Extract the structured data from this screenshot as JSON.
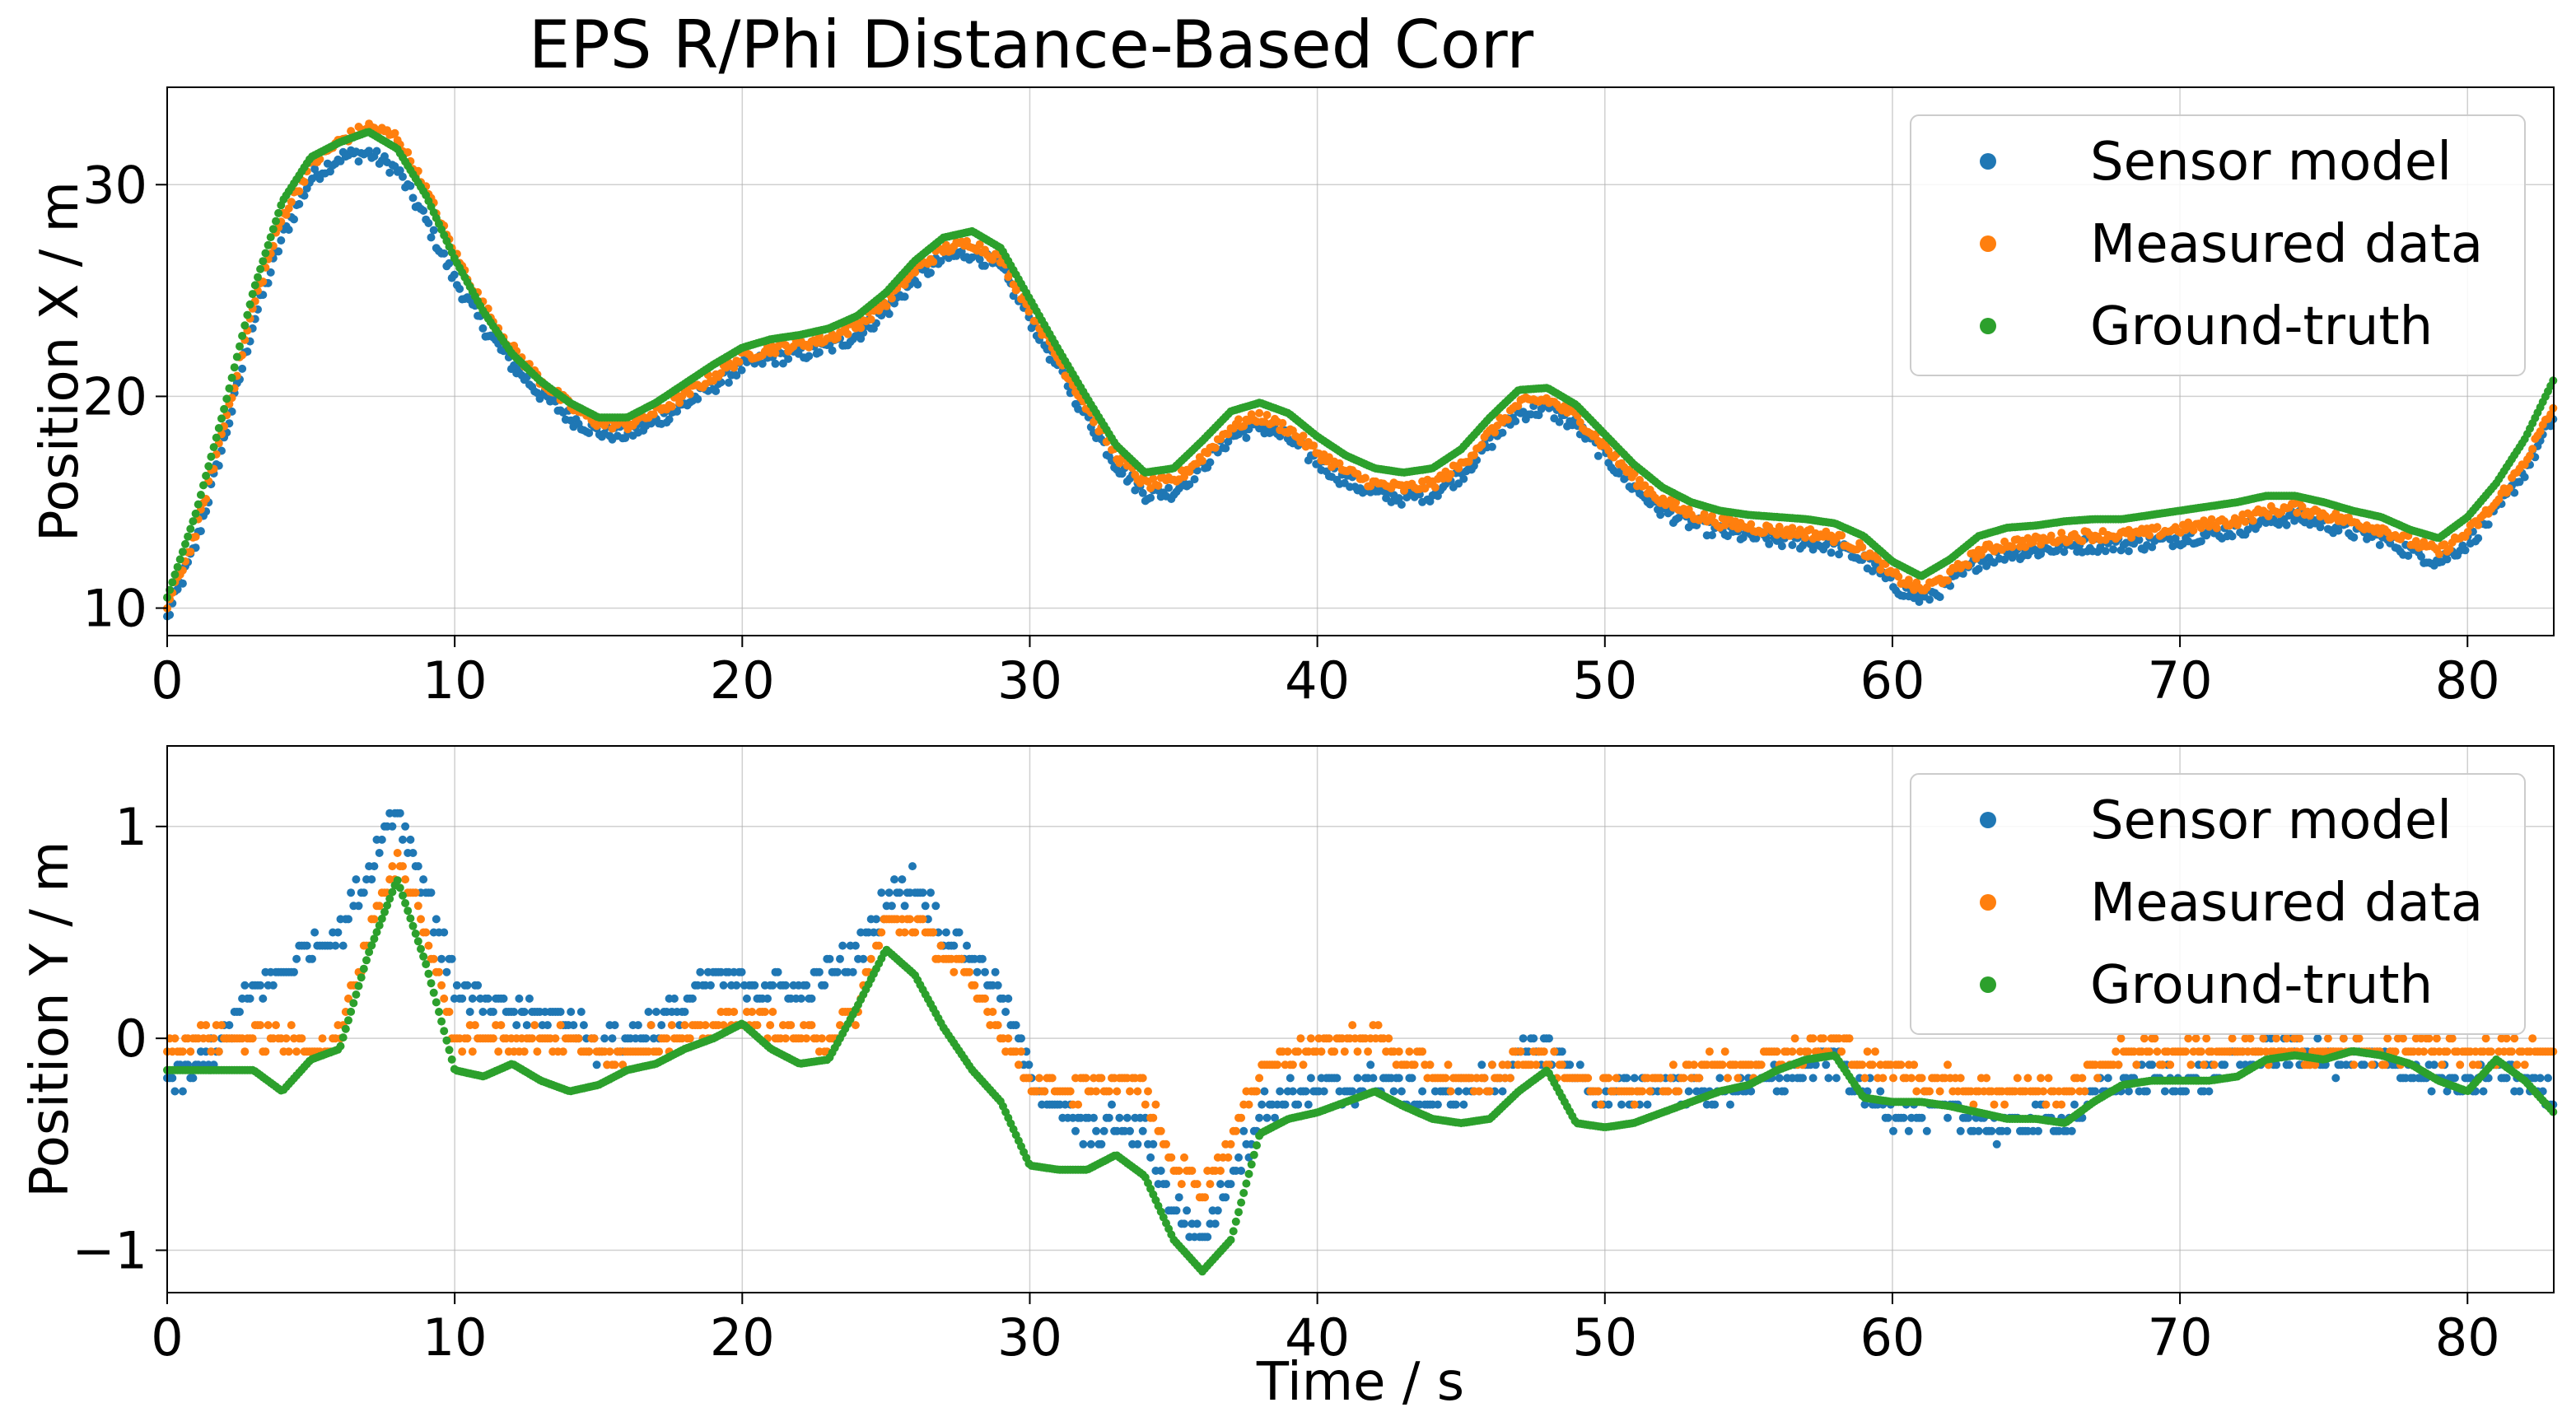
{
  "chart_data": [
    {
      "type": "scatter",
      "title": "EPS R/Phi Distance-Based Corr",
      "xlabel": "",
      "ylabel": "Position X / m",
      "xlim": [
        0,
        83
      ],
      "ylim": [
        8.7,
        34.6
      ],
      "xticks": [
        0,
        10,
        20,
        30,
        40,
        50,
        60,
        70,
        80
      ],
      "xtick_labels": [
        "0",
        "10",
        "20",
        "30",
        "40",
        "50",
        "60",
        "70",
        "80"
      ],
      "yticks": [
        10,
        20,
        30
      ],
      "ytick_labels": [
        "10",
        "20",
        "30"
      ],
      "grid": true,
      "legend_position": "top-right",
      "series": [
        {
          "name": "Sensor model",
          "color": "#1f77b4",
          "offset": -0.5,
          "noise": 0.35,
          "quant": 0,
          "x": [
            0,
            1,
            2,
            3,
            4,
            5,
            6,
            7,
            8,
            9,
            10,
            11,
            12,
            13,
            14,
            15,
            16,
            17,
            18,
            19,
            20,
            21,
            22,
            23,
            24,
            25,
            26,
            27,
            28,
            29,
            30,
            31,
            32,
            33,
            34,
            35,
            36,
            37,
            38,
            39,
            40,
            41,
            42,
            43,
            44,
            45,
            46,
            47,
            48,
            49,
            50,
            51,
            52,
            53,
            54,
            55,
            56,
            57,
            58,
            59,
            60,
            61,
            62,
            63,
            64,
            65,
            66,
            67,
            68,
            69,
            70,
            71,
            72,
            73,
            74,
            75,
            76,
            77,
            78,
            79,
            80,
            81,
            82,
            83
          ],
          "y": [
            10.0,
            13.5,
            18.5,
            24.0,
            28.0,
            30.8,
            31.8,
            32.0,
            31.2,
            28.8,
            26.0,
            23.8,
            22.0,
            20.6,
            19.5,
            18.8,
            18.7,
            19.3,
            20.1,
            21.0,
            21.9,
            22.3,
            22.5,
            22.8,
            23.4,
            24.5,
            26.0,
            27.0,
            27.3,
            26.5,
            24.2,
            21.8,
            19.5,
            17.3,
            15.9,
            16.0,
            17.2,
            18.6,
            19.1,
            18.5,
            17.4,
            16.5,
            15.9,
            15.7,
            15.9,
            16.8,
            18.3,
            19.7,
            19.9,
            19.1,
            17.7,
            16.2,
            15.1,
            14.5,
            14.1,
            13.9,
            13.7,
            13.6,
            13.4,
            12.8,
            11.6,
            10.9,
            11.6,
            12.7,
            13.1,
            13.2,
            13.4,
            13.5,
            13.5,
            13.6,
            13.8,
            14.0,
            14.2,
            14.6,
            14.8,
            14.5,
            14.1,
            13.8,
            13.2,
            12.7,
            13.6,
            15.0,
            17.0,
            19.5
          ]
        },
        {
          "name": "Measured data",
          "color": "#ff7f0e",
          "offset": -0.25,
          "noise": 0.25,
          "quant": 0,
          "x": [
            0,
            1,
            2,
            3,
            4,
            5,
            6,
            7,
            8,
            9,
            10,
            11,
            12,
            13,
            14,
            15,
            16,
            17,
            18,
            19,
            20,
            21,
            22,
            23,
            24,
            25,
            26,
            27,
            28,
            29,
            30,
            31,
            32,
            33,
            34,
            35,
            36,
            37,
            38,
            39,
            40,
            41,
            42,
            43,
            44,
            45,
            46,
            47,
            48,
            49,
            50,
            51,
            52,
            53,
            54,
            55,
            56,
            57,
            58,
            59,
            60,
            61,
            62,
            63,
            64,
            65,
            66,
            67,
            68,
            69,
            70,
            71,
            72,
            73,
            74,
            75,
            76,
            77,
            78,
            79,
            80,
            81,
            82,
            83
          ],
          "y": [
            10.3,
            13.8,
            19.0,
            24.5,
            28.7,
            31.2,
            32.3,
            33.0,
            32.5,
            30.0,
            27.0,
            24.5,
            22.5,
            21.0,
            19.8,
            19.0,
            18.9,
            19.5,
            20.3,
            21.2,
            22.1,
            22.5,
            22.7,
            23.0,
            23.6,
            24.7,
            26.2,
            27.2,
            27.5,
            26.7,
            24.4,
            22.0,
            19.7,
            17.5,
            16.1,
            16.2,
            17.4,
            18.8,
            19.3,
            18.7,
            17.6,
            16.7,
            16.1,
            15.9,
            16.1,
            17.0,
            18.5,
            19.9,
            20.1,
            19.3,
            17.9,
            16.4,
            15.3,
            14.7,
            14.3,
            14.1,
            13.9,
            13.8,
            13.6,
            13.0,
            11.8,
            11.1,
            11.8,
            12.9,
            13.3,
            13.4,
            13.6,
            13.7,
            13.7,
            13.8,
            14.0,
            14.2,
            14.4,
            14.8,
            15.0,
            14.7,
            14.3,
            14.0,
            13.4,
            12.9,
            13.8,
            15.2,
            17.2,
            19.7
          ]
        },
        {
          "name": "Ground-truth",
          "color": "#2ca02c",
          "offset": 0,
          "noise": 0.0,
          "quant": 0,
          "x": [
            0,
            1,
            2,
            3,
            4,
            5,
            6,
            7,
            8,
            9,
            10,
            11,
            12,
            13,
            14,
            15,
            16,
            17,
            18,
            19,
            20,
            21,
            22,
            23,
            24,
            25,
            26,
            27,
            28,
            29,
            30,
            31,
            32,
            33,
            34,
            35,
            36,
            37,
            38,
            39,
            40,
            41,
            42,
            43,
            44,
            45,
            46,
            47,
            48,
            49,
            50,
            51,
            52,
            53,
            54,
            55,
            56,
            57,
            58,
            59,
            60,
            61,
            62,
            63,
            64,
            65,
            66,
            67,
            68,
            69,
            70,
            71,
            72,
            73,
            74,
            75,
            76,
            77,
            78,
            79,
            80,
            81,
            82,
            83
          ],
          "y": [
            10.5,
            14.5,
            19.5,
            25.0,
            29.2,
            31.3,
            32.0,
            32.5,
            31.7,
            29.5,
            26.5,
            24.0,
            22.0,
            20.7,
            19.7,
            19.0,
            19.0,
            19.7,
            20.6,
            21.5,
            22.3,
            22.7,
            22.9,
            23.2,
            23.8,
            24.9,
            26.4,
            27.5,
            27.8,
            27.0,
            24.6,
            22.2,
            19.9,
            17.7,
            16.4,
            16.6,
            17.9,
            19.3,
            19.7,
            19.2,
            18.1,
            17.2,
            16.6,
            16.4,
            16.6,
            17.5,
            19.0,
            20.3,
            20.4,
            19.6,
            18.2,
            16.8,
            15.7,
            15.0,
            14.6,
            14.4,
            14.3,
            14.2,
            14.0,
            13.4,
            12.2,
            11.5,
            12.3,
            13.4,
            13.8,
            13.9,
            14.1,
            14.2,
            14.2,
            14.4,
            14.6,
            14.8,
            15.0,
            15.3,
            15.3,
            15.0,
            14.6,
            14.3,
            13.7,
            13.3,
            14.3,
            15.9,
            18.0,
            20.8
          ]
        }
      ]
    },
    {
      "type": "scatter",
      "title": "",
      "xlabel": "Time / s",
      "ylabel": "Position Y / m",
      "xlim": [
        0,
        83
      ],
      "ylim": [
        -1.2,
        1.38
      ],
      "xticks": [
        0,
        10,
        20,
        30,
        40,
        50,
        60,
        70,
        80
      ],
      "xtick_labels": [
        "0",
        "10",
        "20",
        "30",
        "40",
        "50",
        "60",
        "70",
        "80"
      ],
      "yticks": [
        -1,
        0,
        1
      ],
      "ytick_labels": [
        "−1",
        "0",
        "1"
      ],
      "grid": true,
      "legend_position": "top-right",
      "series": [
        {
          "name": "Sensor model",
          "color": "#1f77b4",
          "offset": 0,
          "noise": 0.07,
          "quant": 0.0625,
          "x": [
            0,
            1,
            2,
            3,
            4,
            5,
            6,
            7,
            8,
            9,
            10,
            11,
            12,
            13,
            14,
            15,
            16,
            17,
            18,
            19,
            20,
            21,
            22,
            23,
            24,
            25,
            26,
            27,
            28,
            29,
            30,
            31,
            32,
            33,
            34,
            35,
            36,
            37,
            38,
            39,
            40,
            41,
            42,
            43,
            44,
            45,
            46,
            47,
            48,
            49,
            50,
            51,
            52,
            53,
            54,
            55,
            56,
            57,
            58,
            59,
            60,
            61,
            62,
            63,
            64,
            65,
            66,
            67,
            68,
            69,
            70,
            71,
            72,
            73,
            74,
            75,
            76,
            77,
            78,
            79,
            80,
            81,
            82,
            83
          ],
          "y": [
            -0.2,
            -0.15,
            0.0,
            0.25,
            0.3,
            0.45,
            0.5,
            0.8,
            1.1,
            0.7,
            0.25,
            0.15,
            0.12,
            0.12,
            0.1,
            -0.05,
            0.0,
            0.08,
            0.15,
            0.3,
            0.25,
            0.25,
            0.2,
            0.3,
            0.4,
            0.65,
            0.75,
            0.5,
            0.4,
            0.2,
            -0.15,
            -0.35,
            -0.45,
            -0.4,
            -0.45,
            -0.8,
            -0.95,
            -0.65,
            -0.35,
            -0.25,
            -0.25,
            -0.25,
            -0.2,
            -0.25,
            -0.3,
            -0.25,
            -0.2,
            -0.1,
            -0.02,
            -0.15,
            -0.3,
            -0.25,
            -0.2,
            -0.25,
            -0.25,
            -0.2,
            -0.2,
            -0.15,
            -0.1,
            -0.25,
            -0.35,
            -0.35,
            -0.35,
            -0.4,
            -0.42,
            -0.38,
            -0.4,
            -0.28,
            -0.2,
            -0.2,
            -0.2,
            -0.2,
            -0.12,
            -0.05,
            -0.08,
            -0.1,
            -0.08,
            -0.1,
            -0.15,
            -0.2,
            -0.25,
            -0.15,
            -0.2,
            -0.25
          ]
        },
        {
          "name": "Measured data",
          "color": "#ff7f0e",
          "offset": 0,
          "noise": 0.05,
          "quant": 0.0625,
          "x": [
            0,
            1,
            2,
            3,
            4,
            5,
            6,
            7,
            8,
            9,
            10,
            11,
            12,
            13,
            14,
            15,
            16,
            17,
            18,
            19,
            20,
            21,
            22,
            23,
            24,
            25,
            26,
            27,
            28,
            29,
            30,
            31,
            32,
            33,
            34,
            35,
            36,
            37,
            38,
            39,
            40,
            41,
            42,
            43,
            44,
            45,
            46,
            47,
            48,
            49,
            50,
            51,
            52,
            53,
            54,
            55,
            56,
            57,
            58,
            59,
            60,
            61,
            62,
            63,
            64,
            65,
            66,
            67,
            68,
            69,
            70,
            71,
            72,
            73,
            74,
            75,
            76,
            77,
            78,
            79,
            80,
            81,
            82,
            83
          ],
          "y": [
            -0.05,
            0.0,
            0.0,
            0.0,
            0.0,
            -0.05,
            0.0,
            0.5,
            0.85,
            0.5,
            0.0,
            0.0,
            0.0,
            0.0,
            0.0,
            -0.06,
            -0.06,
            0.0,
            0.0,
            0.06,
            0.1,
            0.06,
            0.0,
            0.0,
            0.15,
            0.55,
            0.55,
            0.4,
            0.25,
            0.05,
            -0.2,
            -0.25,
            -0.25,
            -0.2,
            -0.25,
            -0.6,
            -0.7,
            -0.5,
            -0.15,
            -0.06,
            -0.06,
            0.0,
            0.0,
            -0.1,
            -0.15,
            -0.2,
            -0.2,
            -0.1,
            -0.1,
            -0.2,
            -0.25,
            -0.25,
            -0.2,
            -0.15,
            -0.12,
            -0.12,
            -0.06,
            -0.06,
            0.0,
            -0.12,
            -0.15,
            -0.2,
            -0.2,
            -0.25,
            -0.25,
            -0.25,
            -0.25,
            -0.15,
            -0.06,
            -0.06,
            -0.06,
            -0.06,
            -0.06,
            -0.06,
            -0.06,
            -0.06,
            -0.06,
            -0.06,
            -0.06,
            -0.06,
            -0.06,
            -0.06,
            -0.06,
            -0.06
          ]
        },
        {
          "name": "Ground-truth",
          "color": "#2ca02c",
          "offset": 0,
          "noise": 0.0,
          "quant": 0,
          "x": [
            0,
            1,
            2,
            3,
            4,
            5,
            6,
            7,
            8,
            9,
            10,
            11,
            12,
            13,
            14,
            15,
            16,
            17,
            18,
            19,
            20,
            21,
            22,
            23,
            24,
            25,
            26,
            27,
            28,
            29,
            30,
            31,
            32,
            33,
            34,
            35,
            36,
            37,
            38,
            39,
            40,
            41,
            42,
            43,
            44,
            45,
            46,
            47,
            48,
            49,
            50,
            51,
            52,
            53,
            54,
            55,
            56,
            57,
            58,
            59,
            60,
            61,
            62,
            63,
            64,
            65,
            66,
            67,
            68,
            69,
            70,
            71,
            72,
            73,
            74,
            75,
            76,
            77,
            78,
            79,
            80,
            81,
            82,
            83
          ],
          "y": [
            -0.15,
            -0.15,
            -0.15,
            -0.15,
            -0.25,
            -0.1,
            -0.05,
            0.4,
            0.75,
            0.35,
            -0.15,
            -0.18,
            -0.12,
            -0.2,
            -0.25,
            -0.22,
            -0.15,
            -0.12,
            -0.05,
            0.0,
            0.07,
            -0.05,
            -0.12,
            -0.1,
            0.15,
            0.42,
            0.3,
            0.05,
            -0.15,
            -0.3,
            -0.6,
            -0.62,
            -0.62,
            -0.55,
            -0.65,
            -0.95,
            -1.1,
            -0.95,
            -0.45,
            -0.38,
            -0.35,
            -0.3,
            -0.25,
            -0.32,
            -0.38,
            -0.4,
            -0.38,
            -0.25,
            -0.15,
            -0.4,
            -0.42,
            -0.4,
            -0.35,
            -0.3,
            -0.25,
            -0.22,
            -0.15,
            -0.1,
            -0.08,
            -0.28,
            -0.3,
            -0.3,
            -0.32,
            -0.35,
            -0.38,
            -0.38,
            -0.4,
            -0.3,
            -0.22,
            -0.2,
            -0.2,
            -0.2,
            -0.18,
            -0.1,
            -0.08,
            -0.1,
            -0.06,
            -0.08,
            -0.12,
            -0.2,
            -0.25,
            -0.1,
            -0.2,
            -0.35
          ]
        }
      ]
    }
  ]
}
